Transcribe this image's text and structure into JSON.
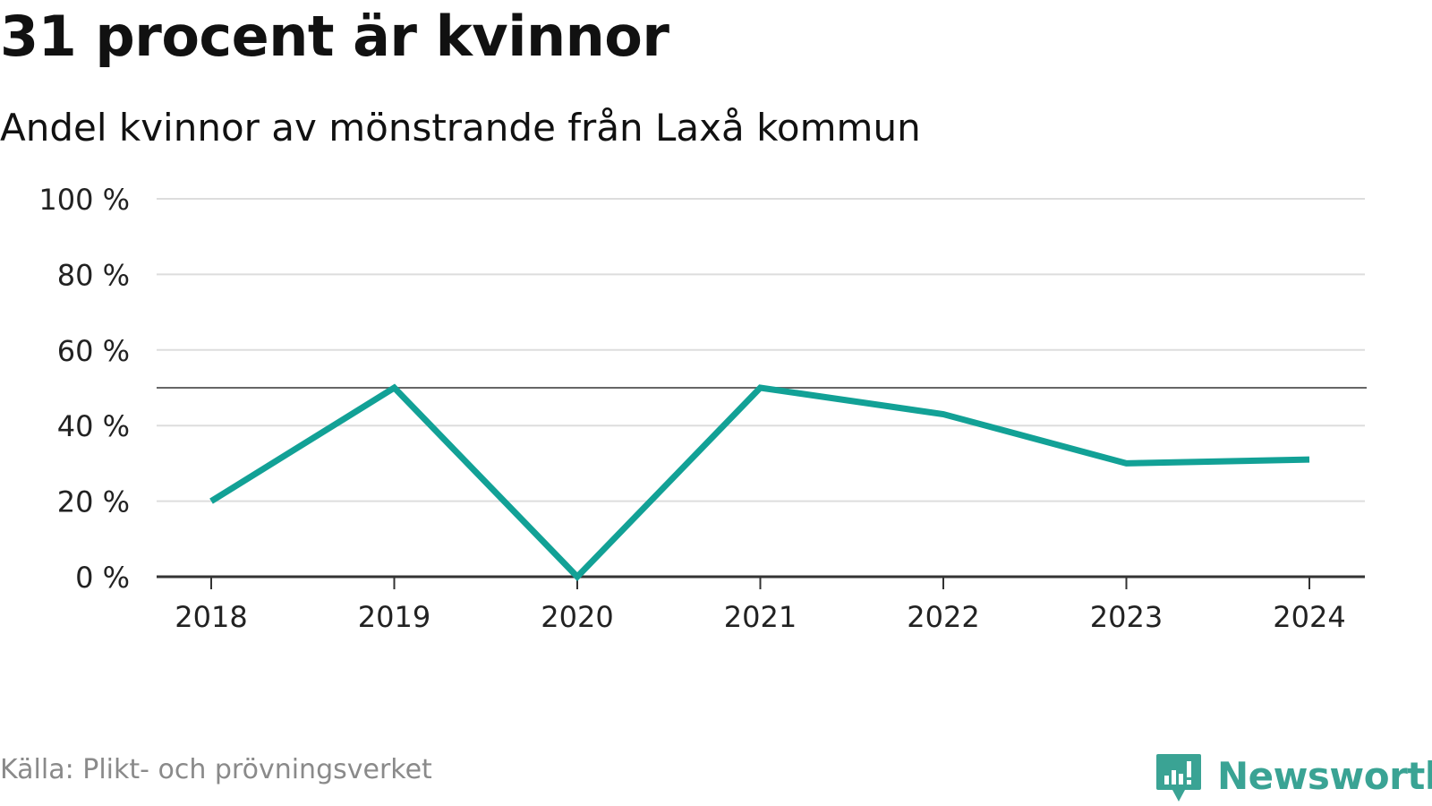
{
  "title": "31 procent är kvinnor",
  "subtitle": "Andel kvinnor av mönstrande från Laxå kommun",
  "source": "Källa: Plikt- och prövningsverket",
  "brand": {
    "name": "Newsworthy",
    "icon": "newsworthy-logo-icon"
  },
  "colors": {
    "line": "#12a196",
    "grid": "#dddddd",
    "reference": "#666666",
    "axis": "#333333",
    "brand": "#3aa394"
  },
  "chart_data": {
    "type": "line",
    "title": "31 procent är kvinnor",
    "subtitle": "Andel kvinnor av mönstrande från Laxå kommun",
    "xlabel": "",
    "ylabel": "",
    "categories": [
      "2018",
      "2019",
      "2020",
      "2021",
      "2022",
      "2023",
      "2024"
    ],
    "series": [
      {
        "name": "Andel kvinnor",
        "values": [
          20,
          50,
          0,
          50,
          43,
          30,
          31
        ]
      }
    ],
    "ylim": [
      0,
      100
    ],
    "yticks": [
      0,
      20,
      40,
      60,
      80,
      100
    ],
    "ytick_labels": [
      "0 %",
      "20 %",
      "40 %",
      "60 %",
      "80 %",
      "100 %"
    ],
    "reference_line": 50,
    "grid": true
  }
}
